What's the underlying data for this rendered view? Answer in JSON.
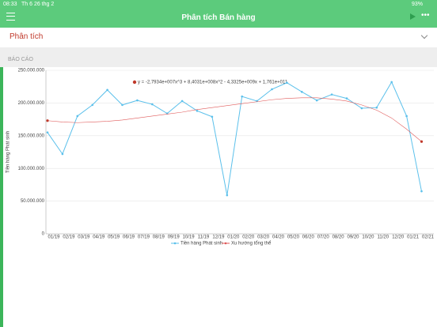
{
  "status_bar": {
    "time": "08:33",
    "date": "Th 6 26 thg 2",
    "battery": "93%"
  },
  "header": {
    "title": "Phân tích Bán hàng"
  },
  "dropdown": {
    "label": "Phân tích"
  },
  "section": {
    "title": "BÁO CÁO"
  },
  "chart_data": {
    "type": "line",
    "y_label": "Tiền hàng Phát sinh",
    "annotation": "y = -2,7934e+007x^3 + 8,4031e+008x^2 - 4,3325e+009x + 1,761e+011",
    "categories": [
      "01/19",
      "02/19",
      "03/19",
      "04/19",
      "05/19",
      "06/19",
      "07/19",
      "08/19",
      "09/19",
      "10/19",
      "11/19",
      "12/19",
      "01/20",
      "02/20",
      "03/20",
      "04/20",
      "05/20",
      "06/20",
      "07/20",
      "08/20",
      "09/20",
      "10/20",
      "11/20",
      "12/20",
      "01/21",
      "02/21"
    ],
    "series": [
      {
        "name": "Tiền hàng Phát sinh",
        "color": "#5bc0eb",
        "values": [
          155000000,
          122000000,
          180000000,
          197000000,
          220000000,
          197000000,
          204000000,
          198000000,
          184000000,
          203000000,
          188000000,
          179000000,
          59000000,
          210000000,
          203000000,
          221000000,
          231000000,
          217000000,
          204000000,
          213000000,
          207000000,
          192000000,
          193000000,
          232000000,
          180000000,
          65000000
        ]
      },
      {
        "name": "Xu hướng tổng thể",
        "color": "#e05a5a",
        "values": [
          173000000,
          171000000,
          170000000,
          171000000,
          172000000,
          174000000,
          177000000,
          180000000,
          183000000,
          186000000,
          190000000,
          193000000,
          196000000,
          199000000,
          202000000,
          205000000,
          207000000,
          208000000,
          208000000,
          206000000,
          203000000,
          197000000,
          189000000,
          177000000,
          160000000,
          141000000
        ]
      }
    ],
    "ylim": [
      0,
      250000000
    ],
    "yticks": [
      0,
      {
        "value": 50000000,
        "label": "50.000.000"
      },
      {
        "value": 100000000,
        "label": "100.000.000"
      },
      {
        "value": 150000000,
        "label": "150.000.000"
      },
      {
        "value": 200000000,
        "label": "200.000.000"
      },
      {
        "value": 250000000,
        "label": "250.000.000"
      }
    ],
    "grid": true
  }
}
